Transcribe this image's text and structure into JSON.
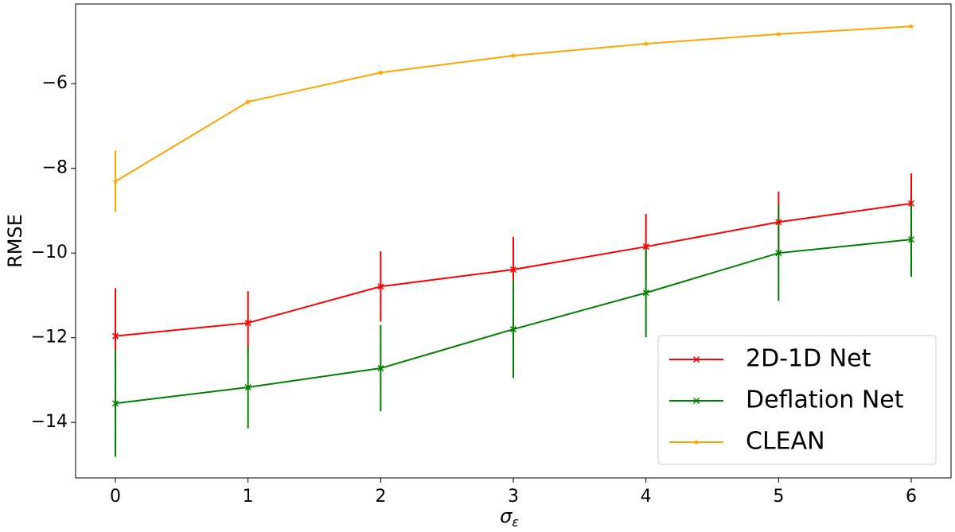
{
  "chart_data": {
    "type": "line",
    "xlabel": "σ",
    "xlabel_subscript": "ε",
    "ylabel": "RMSE",
    "x": [
      0,
      1,
      2,
      3,
      4,
      5,
      6
    ],
    "series": [
      {
        "name": "2D-1D Net",
        "color": "#ff0000",
        "marker": "x",
        "values": [
          -11.96,
          -11.65,
          -10.79,
          -10.39,
          -9.85,
          -9.27,
          -8.83
        ],
        "errors": [
          1.13,
          0.75,
          0.83,
          0.77,
          0.77,
          0.72,
          0.71
        ]
      },
      {
        "name": "Deflation Net",
        "color": "#008000",
        "marker": "x",
        "values": [
          -13.55,
          -13.17,
          -12.72,
          -11.8,
          -10.94,
          -10.0,
          -9.68
        ],
        "errors": [
          1.26,
          0.97,
          1.02,
          1.15,
          1.05,
          1.13,
          0.88
        ]
      },
      {
        "name": "CLEAN",
        "color": "#ffa500",
        "marker": "star",
        "values": [
          -8.31,
          -6.43,
          -5.74,
          -5.34,
          -5.06,
          -4.83,
          -4.65
        ],
        "errors": [
          0.73,
          0.05,
          0.04,
          0.03,
          0.03,
          0.02,
          0.02
        ]
      }
    ],
    "xlim": [
      -0.3,
      6.3
    ],
    "xticks": [
      0,
      1,
      2,
      3,
      4,
      5,
      6
    ],
    "ylim": [
      -15.31,
      -4.12
    ],
    "yticks": [
      {
        "value": -14,
        "label": "−14"
      },
      {
        "value": -12,
        "label": "−12"
      },
      {
        "value": -10,
        "label": "−10"
      },
      {
        "value": -8,
        "label": "−8"
      },
      {
        "value": -6,
        "label": "−6"
      }
    ],
    "legend": "lower right",
    "grid": false
  }
}
